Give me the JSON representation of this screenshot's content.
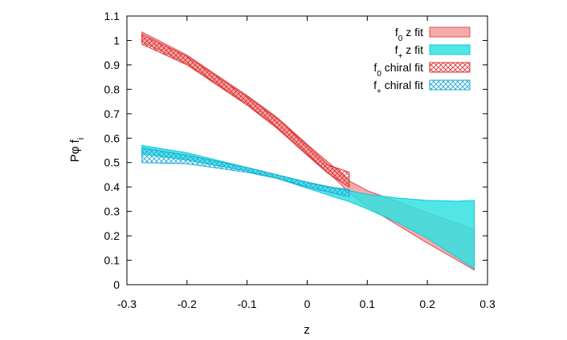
{
  "chart_data": {
    "type": "area",
    "xlabel": "z",
    "ylabel": "Pφ f",
    "ylabel_sub": "i",
    "xlim": [
      -0.3,
      0.3
    ],
    "ylim": [
      0,
      1.1
    ],
    "x_ticks": [
      "-0.3",
      "-0.2",
      "-0.1",
      "0",
      "0.1",
      "0.2",
      "0.3"
    ],
    "x_tick_values": [
      -0.3,
      -0.2,
      -0.1,
      0,
      0.1,
      0.2,
      0.3
    ],
    "y_ticks": [
      "0",
      "0.1",
      "0.2",
      "0.3",
      "0.4",
      "0.5",
      "0.6",
      "0.7",
      "0.8",
      "0.9",
      "1",
      "1.1"
    ],
    "y_tick_values": [
      0,
      0.1,
      0.2,
      0.3,
      0.4,
      0.5,
      0.6,
      0.7,
      0.8,
      0.9,
      1.0,
      1.1
    ],
    "grid": false,
    "legend_position": "top-right",
    "colors": {
      "f0_z": "#f4a6a6",
      "f0_edge": "#e05050",
      "fplus_z": "#33e0e0",
      "fplus_edge": "#10c8d8",
      "f0_hatch": "#e03030",
      "fplus_hatch": "#20a8d8"
    },
    "series": [
      {
        "key": "f0_z",
        "legend_main": "f",
        "legend_sub": "0",
        "legend_rest": " z fit",
        "style": "solid",
        "x": [
          -0.275,
          -0.2,
          -0.1,
          -0.05,
          0,
          0.05,
          0.07,
          0.1,
          0.15,
          0.2,
          0.25,
          0.278
        ],
        "upper": [
          1.035,
          0.94,
          0.775,
          0.685,
          0.575,
          0.47,
          0.425,
          0.385,
          0.34,
          0.295,
          0.25,
          0.225
        ],
        "lower": [
          0.995,
          0.905,
          0.74,
          0.645,
          0.535,
          0.425,
          0.375,
          0.32,
          0.245,
          0.17,
          0.1,
          0.06
        ]
      },
      {
        "key": "fplus_z",
        "legend_main": "f",
        "legend_sub": "+",
        "legend_rest": " z fit",
        "style": "solid",
        "x": [
          -0.275,
          -0.2,
          -0.1,
          -0.05,
          0,
          0.05,
          0.07,
          0.1,
          0.15,
          0.2,
          0.25,
          0.278
        ],
        "upper": [
          0.57,
          0.54,
          0.48,
          0.45,
          0.42,
          0.395,
          0.385,
          0.37,
          0.355,
          0.345,
          0.342,
          0.345
        ],
        "lower": [
          0.535,
          0.51,
          0.465,
          0.435,
          0.395,
          0.355,
          0.34,
          0.31,
          0.255,
          0.19,
          0.11,
          0.065
        ]
      },
      {
        "key": "f0_chiral",
        "legend_main": "f",
        "legend_sub": "0",
        "legend_rest": " chiral fit",
        "style": "hatch",
        "x": [
          -0.275,
          -0.2,
          -0.1,
          -0.05,
          0,
          0.035,
          0.07
        ],
        "upper": [
          1.025,
          0.935,
          0.77,
          0.68,
          0.57,
          0.49,
          0.46
        ],
        "lower": [
          0.985,
          0.9,
          0.735,
          0.64,
          0.53,
          0.455,
          0.4
        ]
      },
      {
        "key": "fplus_chiral",
        "legend_main": "f",
        "legend_sub": "+",
        "legend_rest": " chiral fit",
        "style": "hatch",
        "x": [
          -0.275,
          -0.2,
          -0.1,
          -0.05,
          0,
          0.035,
          0.07
        ],
        "upper": [
          0.56,
          0.53,
          0.48,
          0.45,
          0.42,
          0.4,
          0.39
        ],
        "lower": [
          0.5,
          0.495,
          0.46,
          0.435,
          0.4,
          0.38,
          0.36
        ]
      }
    ]
  }
}
